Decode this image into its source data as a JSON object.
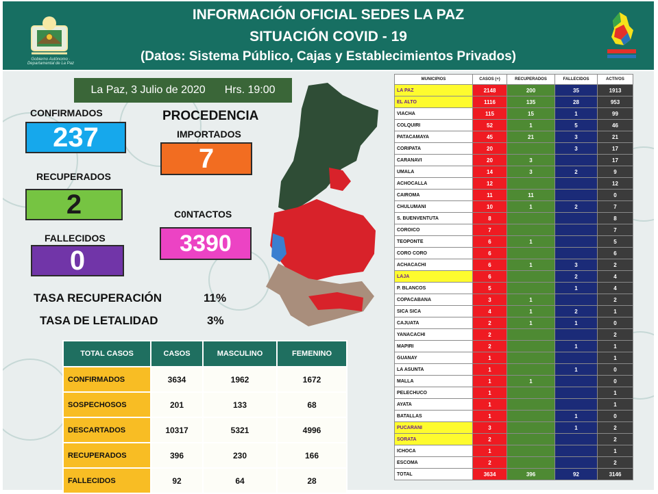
{
  "header": {
    "title": "INFORMACIÓN OFICIAL SEDES LA PAZ",
    "subtitle": "SITUACIÓN  COVID - 19",
    "source": "(Datos: Sistema Público, Cajas y Establecimientos Privados)"
  },
  "colors": {
    "header_bg": "#176f62",
    "confirmed": "#16a8ec",
    "recovered": "#76c442",
    "deceased": "#7135a8",
    "imported": "#f26d21",
    "contacts": "#ec43c4",
    "casos_col": "#ef1b22",
    "recuperados_col": "#4e8a33",
    "fallecidos_col": "#1b2b78",
    "activos_col": "#3b3b3b",
    "highlight": "#fefb2e"
  },
  "report": {
    "date": "La Paz, 3 Julio de 2020",
    "time": "Hrs. 19:00"
  },
  "stats": {
    "confirmados_label": "CONFIRMADOS",
    "confirmados": "237",
    "recuperados_label": "RECUPERADOS",
    "recuperados": "2",
    "fallecidos_label": "FALLECIDOS",
    "fallecidos": "0",
    "procedencia_label": "PROCEDENCIA",
    "importados_label": "IMPORTADOS",
    "importados": "7",
    "contactos_label": "C0NTACTOS",
    "contactos": "3390",
    "tasa_recuperacion_label": "TASA RECUPERACIÓN",
    "tasa_recuperacion": "11%",
    "tasa_letalidad_label": "TASA  DE LETALIDAD",
    "tasa_letalidad": "3%"
  },
  "cases_table": {
    "headers": [
      "TOTAL CASOS",
      "CASOS",
      "MASCULINO",
      "FEMENINO"
    ],
    "rows": [
      [
        "CONFIRMADOS",
        "3634",
        "1962",
        "1672"
      ],
      [
        "SOSPECHOSOS",
        "201",
        "133",
        "68"
      ],
      [
        "DESCARTADOS",
        "10317",
        "5321",
        "4996"
      ],
      [
        "RECUPERADOS",
        "396",
        "230",
        "166"
      ],
      [
        "FALLECIDOS",
        "92",
        "64",
        "28"
      ]
    ]
  },
  "municipal_table": {
    "headers": [
      "MUNICIPIOS",
      "CASOS (+)",
      "RECUPERADOS",
      "FALLECIDOS",
      "ACTIVOS"
    ],
    "rows": [
      {
        "m": "LA PAZ",
        "c": "2148",
        "r": "200",
        "f": "35",
        "a": "1913",
        "hl": true
      },
      {
        "m": "EL ALTO",
        "c": "1116",
        "r": "135",
        "f": "28",
        "a": "953",
        "hl": true
      },
      {
        "m": "VIACHA",
        "c": "115",
        "r": "15",
        "f": "1",
        "a": "99",
        "hl": false
      },
      {
        "m": "COLQUIRI",
        "c": "52",
        "r": "1",
        "f": "5",
        "a": "46",
        "hl": false
      },
      {
        "m": "PATACAMAYA",
        "c": "45",
        "r": "21",
        "f": "3",
        "a": "21",
        "hl": false
      },
      {
        "m": "CORIPATA",
        "c": "20",
        "r": "",
        "f": "3",
        "a": "17",
        "hl": false
      },
      {
        "m": "CARANAVI",
        "c": "20",
        "r": "3",
        "f": "",
        "a": "17",
        "hl": false
      },
      {
        "m": "UMALA",
        "c": "14",
        "r": "3",
        "f": "2",
        "a": "9",
        "hl": false
      },
      {
        "m": "ACHOCALLA",
        "c": "12",
        "r": "",
        "f": "",
        "a": "12",
        "hl": false
      },
      {
        "m": "CAIROMA",
        "c": "11",
        "r": "11",
        "f": "",
        "a": "0",
        "hl": false
      },
      {
        "m": "CHULUMANI",
        "c": "10",
        "r": "1",
        "f": "2",
        "a": "7",
        "hl": false
      },
      {
        "m": "S. BUENVENTUTA",
        "c": "8",
        "r": "",
        "f": "",
        "a": "8",
        "hl": false
      },
      {
        "m": "COROICO",
        "c": "7",
        "r": "",
        "f": "",
        "a": "7",
        "hl": false
      },
      {
        "m": "TEOPONTE",
        "c": "6",
        "r": "1",
        "f": "",
        "a": "5",
        "hl": false
      },
      {
        "m": "CORO CORO",
        "c": "6",
        "r": "",
        "f": "",
        "a": "6",
        "hl": false
      },
      {
        "m": "ACHACACHI",
        "c": "6",
        "r": "1",
        "f": "3",
        "a": "2",
        "hl": false
      },
      {
        "m": "LAJA",
        "c": "6",
        "r": "",
        "f": "2",
        "a": "4",
        "hl": true
      },
      {
        "m": "P. BLANCOS",
        "c": "5",
        "r": "",
        "f": "1",
        "a": "4",
        "hl": false
      },
      {
        "m": "COPACABANA",
        "c": "3",
        "r": "1",
        "f": "",
        "a": "2",
        "hl": false
      },
      {
        "m": "SICA SICA",
        "c": "4",
        "r": "1",
        "f": "2",
        "a": "1",
        "hl": false
      },
      {
        "m": "CAJUATA",
        "c": "2",
        "r": "1",
        "f": "1",
        "a": "0",
        "hl": false
      },
      {
        "m": "YANACACHI",
        "c": "2",
        "r": "",
        "f": "",
        "a": "2",
        "hl": false
      },
      {
        "m": "MAPIRI",
        "c": "2",
        "r": "",
        "f": "1",
        "a": "1",
        "hl": false
      },
      {
        "m": "GUANAY",
        "c": "1",
        "r": "",
        "f": "",
        "a": "1",
        "hl": false
      },
      {
        "m": "LA ASUNTA",
        "c": "1",
        "r": "",
        "f": "1",
        "a": "0",
        "hl": false
      },
      {
        "m": "MALLA",
        "c": "1",
        "r": "1",
        "f": "",
        "a": "0",
        "hl": false
      },
      {
        "m": "PELECHUCO",
        "c": "1",
        "r": "",
        "f": "",
        "a": "1",
        "hl": false
      },
      {
        "m": "AYATA",
        "c": "1",
        "r": "",
        "f": "",
        "a": "1",
        "hl": false
      },
      {
        "m": "BATALLAS",
        "c": "1",
        "r": "",
        "f": "1",
        "a": "0",
        "hl": false
      },
      {
        "m": "PUCARANI",
        "c": "3",
        "r": "",
        "f": "1",
        "a": "2",
        "hl": true
      },
      {
        "m": "SORATA",
        "c": "2",
        "r": "",
        "f": "",
        "a": "2",
        "hl": true
      },
      {
        "m": "ICHOCA",
        "c": "1",
        "r": "",
        "f": "",
        "a": "1",
        "hl": false
      },
      {
        "m": "ESCOMA",
        "c": "2",
        "r": "",
        "f": "",
        "a": "2",
        "hl": false
      }
    ],
    "total": {
      "m": "TOTAL",
      "c": "3634",
      "r": "396",
      "f": "92",
      "a": "3146"
    }
  }
}
